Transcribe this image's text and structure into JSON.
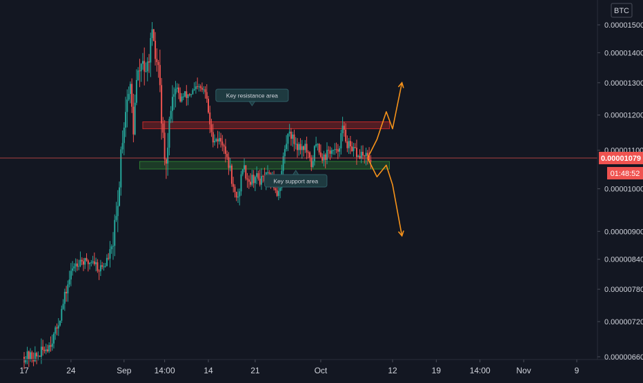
{
  "currency_badge": "BTC",
  "last_price_label": "0.00001079",
  "countdown_label": "01:48:52",
  "colors": {
    "background": "#131722",
    "axis_text": "#d1d4dc",
    "up": "#26a69a",
    "down": "#ef5350",
    "resistance": "#c62828",
    "support": "#2e7d32",
    "projection": "#f7931a",
    "annotation_bg": "#1e3a40",
    "price_tag": "#ef5350"
  },
  "chart_data": {
    "type": "candlestick",
    "y_axis": {
      "ticks": [
        {
          "label": "0.00001500",
          "value": 1.5e-05
        },
        {
          "label": "0.00001400",
          "value": 1.4e-05
        },
        {
          "label": "0.00001300",
          "value": 1.3e-05
        },
        {
          "label": "0.00001200",
          "value": 1.2e-05
        },
        {
          "label": "0.00001100",
          "value": 1.1e-05
        },
        {
          "label": "0.00001000",
          "value": 1e-05
        },
        {
          "label": "0.00000900",
          "value": 9e-06
        },
        {
          "label": "0.00000840",
          "value": 8.4e-06
        },
        {
          "label": "0.00000780",
          "value": 7.8e-06
        },
        {
          "label": "0.00000720",
          "value": 7.2e-06
        },
        {
          "label": "0.00000660",
          "value": 6.6e-06
        }
      ],
      "scale": "log",
      "range": [
        6.6e-06,
        1.53e-05
      ]
    },
    "x_axis": {
      "ticks": [
        {
          "label": "17",
          "index": 0
        },
        {
          "label": "24",
          "index": 15
        },
        {
          "label": "Sep",
          "index": 32
        },
        {
          "label": "14:00",
          "index": 45
        },
        {
          "label": "14",
          "index": 59
        },
        {
          "label": "21",
          "index": 74
        },
        {
          "label": "Oct",
          "index": 95
        },
        {
          "label": "12",
          "index": 118
        },
        {
          "label": "19",
          "index": 132
        },
        {
          "label": "14:00",
          "index": 146
        },
        {
          "label": "Nov",
          "index": 160
        },
        {
          "label": "9",
          "index": 177
        }
      ]
    },
    "grid": false,
    "last_price": 1.079e-05,
    "candle_count": 111,
    "close_path": [
      [
        0,
        6.6e-06
      ],
      [
        4,
        6.6e-06
      ],
      [
        8,
        6.8e-06
      ],
      [
        10,
        7e-06
      ],
      [
        12,
        7.4e-06
      ],
      [
        14,
        7.9e-06
      ],
      [
        16,
        8.3e-06
      ],
      [
        18,
        8.4e-06
      ],
      [
        20,
        8.3e-06
      ],
      [
        22,
        8.4e-06
      ],
      [
        24,
        8.2e-06
      ],
      [
        26,
        8.3e-06
      ],
      [
        28,
        8.6e-06
      ],
      [
        30,
        9.5e-06
      ],
      [
        31,
        1.1e-05
      ],
      [
        32,
        1.18e-05
      ],
      [
        33,
        1.25e-05
      ],
      [
        34,
        1.28e-05
      ],
      [
        35,
        1.16e-05
      ],
      [
        36,
        1.3e-05
      ],
      [
        37,
        1.34e-05
      ],
      [
        38,
        1.38e-05
      ],
      [
        39,
        1.31e-05
      ],
      [
        40,
        1.4e-05
      ],
      [
        41,
        1.45e-05
      ],
      [
        42,
        1.38e-05
      ],
      [
        43,
        1.35e-05
      ],
      [
        44,
        1.2e-05
      ],
      [
        45,
        1.05e-05
      ],
      [
        46,
        1.1e-05
      ],
      [
        47,
        1.24e-05
      ],
      [
        48,
        1.28e-05
      ],
      [
        50,
        1.25e-05
      ],
      [
        52,
        1.26e-05
      ],
      [
        54,
        1.27e-05
      ],
      [
        56,
        1.28e-05
      ],
      [
        58,
        1.27e-05
      ],
      [
        59,
        1.21e-05
      ],
      [
        60,
        1.14e-05
      ],
      [
        62,
        1.13e-05
      ],
      [
        64,
        1.12e-05
      ],
      [
        65,
        1.07e-05
      ],
      [
        66,
        1.05e-05
      ],
      [
        67,
        1e-05
      ],
      [
        68,
        9.7e-06
      ],
      [
        69,
        1e-05
      ],
      [
        70,
        1.06e-05
      ],
      [
        71,
        1.04e-05
      ],
      [
        72,
        1.02e-05
      ],
      [
        74,
        1.03e-05
      ],
      [
        76,
        1.02e-05
      ],
      [
        78,
        1.03e-05
      ],
      [
        80,
        1.01e-05
      ],
      [
        81,
        9.9e-06
      ],
      [
        82,
        1.01e-05
      ],
      [
        83,
        1.08e-05
      ],
      [
        84,
        1.12e-05
      ],
      [
        85,
        1.16e-05
      ],
      [
        86,
        1.13e-05
      ],
      [
        88,
        1.11e-05
      ],
      [
        90,
        1.11e-05
      ],
      [
        91,
        1.08e-05
      ],
      [
        92,
        1.06e-05
      ],
      [
        93,
        1.1e-05
      ],
      [
        94,
        1.12e-05
      ],
      [
        95,
        1.09e-05
      ],
      [
        96,
        1.08e-05
      ],
      [
        97,
        1.09e-05
      ],
      [
        98,
        1.1e-05
      ],
      [
        100,
        1.09e-05
      ],
      [
        101,
        1.12e-05
      ],
      [
        102,
        1.16e-05
      ],
      [
        103,
        1.13e-05
      ],
      [
        104,
        1.11e-05
      ],
      [
        105,
        1.09e-05
      ],
      [
        106,
        1.1e-05
      ],
      [
        107,
        1.08e-05
      ],
      [
        108,
        1.09e-05
      ],
      [
        109,
        1.08e-05
      ],
      [
        110,
        1.079e-05
      ]
    ],
    "zones": [
      {
        "name": "resistance",
        "low": 1.16e-05,
        "high": 1.18e-05,
        "from_index": 38,
        "to_index": 117
      },
      {
        "name": "support",
        "low": 1.05e-05,
        "high": 1.07e-05,
        "from_index": 37,
        "to_index": 117
      }
    ],
    "annotations": [
      {
        "label": "Key resistance area",
        "index": 73,
        "price": 1.26e-05
      },
      {
        "label": "Key support area",
        "index": 87,
        "price": 1.02e-05
      }
    ],
    "projections": [
      {
        "name": "bullish",
        "points": [
          [
            110,
            1.079e-05
          ],
          [
            113,
            1.13e-05
          ],
          [
            116,
            1.21e-05
          ],
          [
            118,
            1.16e-05
          ],
          [
            121,
            1.3e-05
          ]
        ]
      },
      {
        "name": "bearish",
        "points": [
          [
            110,
            1.079e-05
          ],
          [
            113,
            1.03e-05
          ],
          [
            116,
            1.06e-05
          ],
          [
            118,
            1.01e-05
          ],
          [
            121,
            8.9e-06
          ]
        ]
      }
    ]
  }
}
